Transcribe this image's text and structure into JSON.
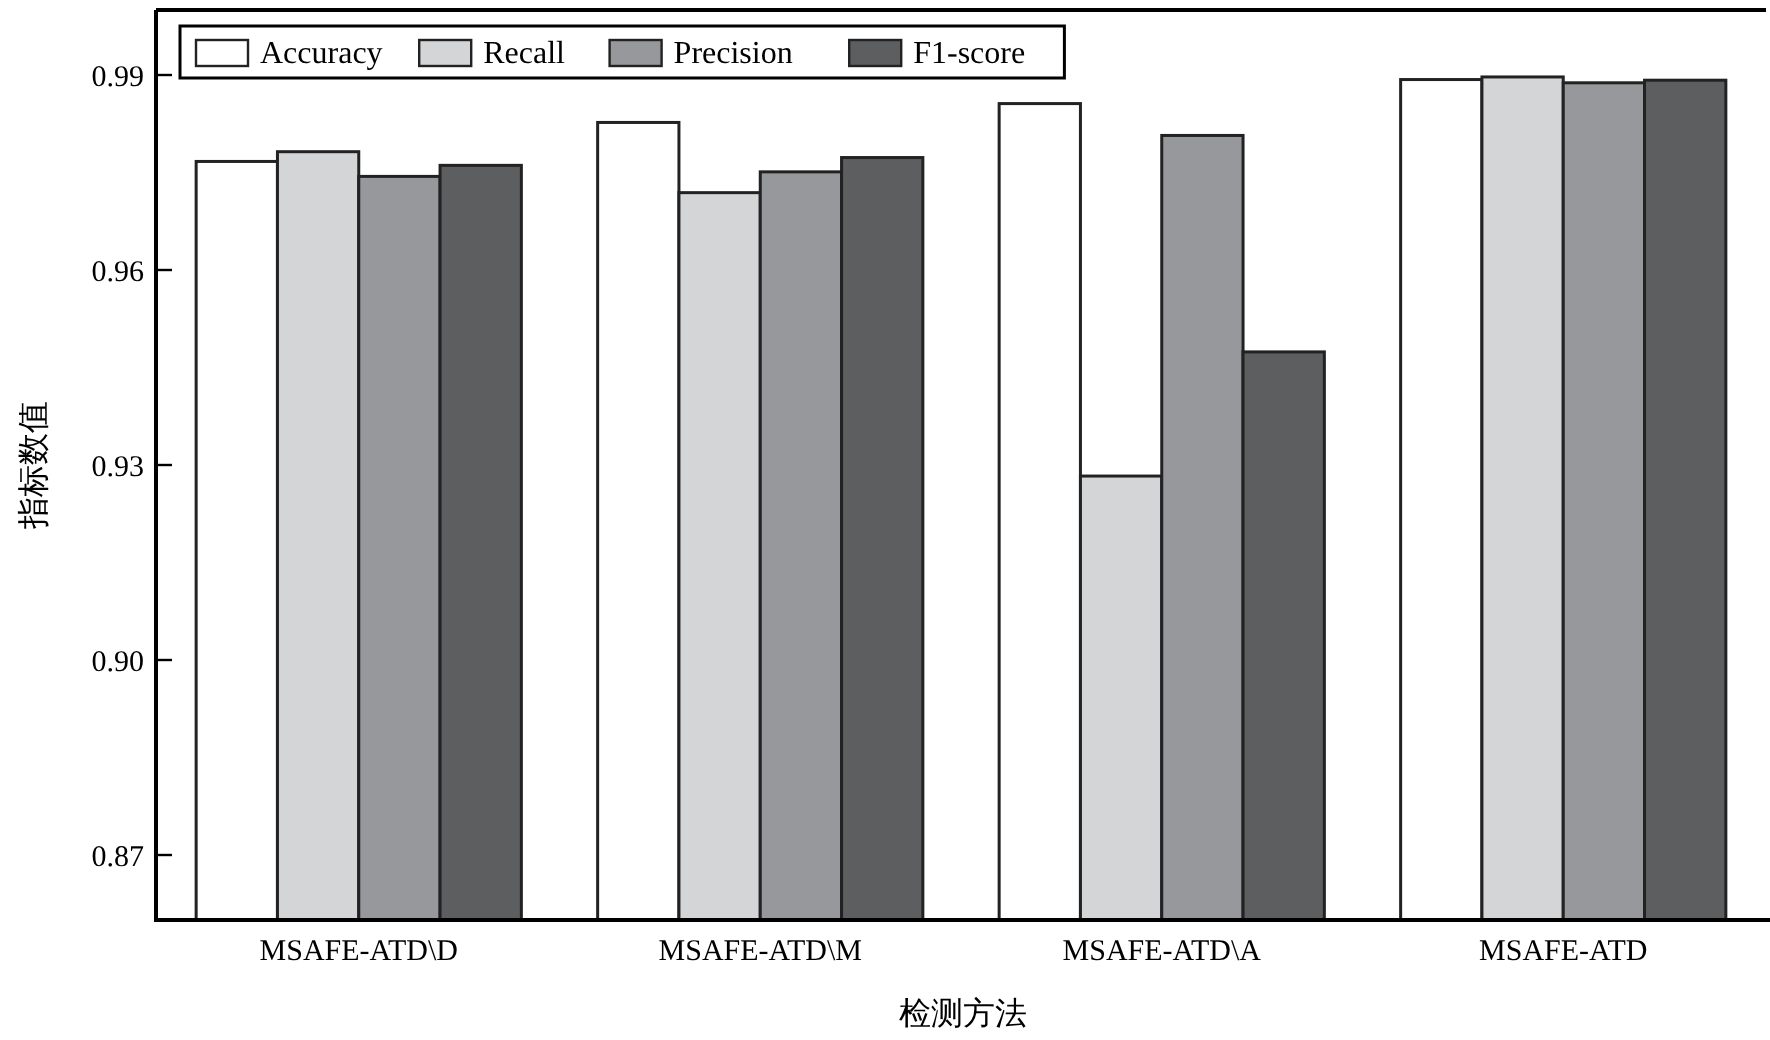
{
  "chart_data": {
    "type": "bar",
    "xlabel": "检测方法",
    "ylabel": "指标数值",
    "categories": [
      "MSAFE-ATD\\D",
      "MSAFE-ATD\\M",
      "MSAFE-ATD\\A",
      "MSAFE-ATD"
    ],
    "series": [
      {
        "name": "Accuracy",
        "color": "#ffffff",
        "values": [
          0.9767,
          0.9827,
          0.9856,
          0.9893
        ]
      },
      {
        "name": "Recall",
        "color": "#d4d5d7",
        "values": [
          0.9782,
          0.9719,
          0.9283,
          0.9897
        ]
      },
      {
        "name": "Precision",
        "color": "#97989c",
        "values": [
          0.9744,
          0.9751,
          0.9807,
          0.9888
        ]
      },
      {
        "name": "F1-score",
        "color": "#5d5e60",
        "values": [
          0.9761,
          0.9773,
          0.9474,
          0.9892
        ]
      }
    ],
    "ylim": [
      0.86,
      1.0
    ],
    "yticks": [
      {
        "value": 0.87,
        "label": "0.87"
      },
      {
        "value": 0.9,
        "label": "0.90"
      },
      {
        "value": 0.93,
        "label": "0.93"
      },
      {
        "value": 0.96,
        "label": "0.96"
      },
      {
        "value": 0.99,
        "label": "0.99"
      }
    ],
    "grid": false,
    "legend": "top left"
  }
}
